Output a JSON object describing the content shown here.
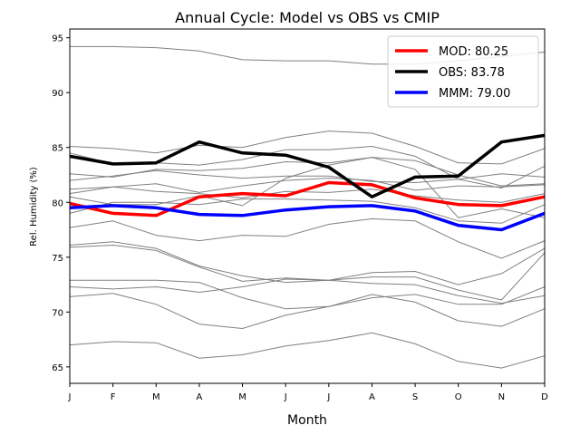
{
  "chart_data": {
    "type": "line",
    "title": "Annual Cycle: Model vs OBS vs CMIP",
    "xlabel": "Month",
    "ylabel": "Rel. Humidity (%)",
    "categories": [
      "J",
      "F",
      "M",
      "A",
      "M",
      "J",
      "J",
      "A",
      "S",
      "O",
      "N",
      "D"
    ],
    "ylim": [
      63.5,
      95.8
    ],
    "yticks": [
      65,
      70,
      75,
      80,
      85,
      90,
      95
    ],
    "legend_position": "top-right",
    "series": [
      {
        "name": "MOD: 80.25",
        "color": "#ff0000",
        "role": "highlight",
        "values": [
          79.9,
          79.0,
          78.8,
          80.5,
          80.8,
          80.6,
          81.8,
          81.6,
          80.4,
          79.8,
          79.7,
          80.5
        ]
      },
      {
        "name": "OBS: 83.78",
        "color": "#000000",
        "role": "highlight",
        "values": [
          84.2,
          83.5,
          83.6,
          85.5,
          84.5,
          84.3,
          83.2,
          80.5,
          82.3,
          82.4,
          85.5,
          86.1
        ]
      },
      {
        "name": "MMM: 79.00",
        "color": "#0000ff",
        "role": "highlight",
        "values": [
          79.5,
          79.7,
          79.5,
          78.9,
          78.8,
          79.3,
          79.6,
          79.7,
          79.2,
          77.9,
          77.5,
          79.0
        ]
      }
    ],
    "cmip_series": [
      {
        "color": "#808080",
        "values": [
          94.2,
          94.2,
          94.1,
          93.8,
          93.0,
          92.9,
          92.9,
          92.6,
          92.6,
          92.9,
          93.3,
          93.7
        ]
      },
      {
        "color": "#808080",
        "values": [
          85.1,
          84.9,
          84.5,
          85.2,
          85.0,
          85.9,
          86.5,
          86.3,
          85.1,
          83.6,
          83.5,
          84.9
        ]
      },
      {
        "color": "#808080",
        "values": [
          84.5,
          83.5,
          83.6,
          83.4,
          83.9,
          84.8,
          84.8,
          85.1,
          84.2,
          82.1,
          81.3,
          83.3
        ]
      },
      {
        "color": "#808080",
        "values": [
          82.6,
          82.3,
          83.0,
          82.9,
          83.1,
          83.7,
          83.6,
          84.1,
          83.8,
          82.5,
          81.5,
          81.7
        ]
      },
      {
        "color": "#808080",
        "values": [
          82.0,
          82.4,
          82.9,
          82.5,
          82.2,
          82.4,
          82.4,
          81.9,
          81.8,
          82.1,
          82.6,
          82.3
        ]
      },
      {
        "color": "#808080",
        "values": [
          81.2,
          81.4,
          81.7,
          80.9,
          81.5,
          82.0,
          82.2,
          82.0,
          81.1,
          81.5,
          81.4,
          81.6
        ]
      },
      {
        "color": "#808080",
        "values": [
          80.8,
          81.4,
          81.0,
          80.8,
          80.4,
          81.0,
          80.9,
          81.2,
          80.6,
          80.2,
          80.0,
          80.8
        ]
      },
      {
        "color": "#808080",
        "values": [
          80.5,
          79.8,
          79.8,
          80.6,
          79.7,
          82.2,
          83.4,
          84.1,
          83.0,
          78.6,
          79.4,
          78.6
        ]
      },
      {
        "color": "#808080",
        "values": [
          79.0,
          80.0,
          80.0,
          79.8,
          80.3,
          80.3,
          80.2,
          80.1,
          79.5,
          78.3,
          78.1,
          79.8
        ]
      },
      {
        "color": "#808080",
        "values": [
          77.7,
          78.3,
          77.0,
          76.5,
          77.0,
          76.9,
          78.0,
          78.5,
          78.3,
          76.4,
          74.9,
          76.5
        ]
      },
      {
        "color": "#808080",
        "values": [
          76.1,
          76.4,
          75.8,
          74.2,
          73.3,
          72.7,
          72.9,
          73.2,
          73.2,
          72.0,
          71.1,
          75.4
        ]
      },
      {
        "color": "#808080",
        "values": [
          75.9,
          76.1,
          75.6,
          74.1,
          72.8,
          73.1,
          72.9,
          73.6,
          73.7,
          72.5,
          73.5,
          75.8
        ]
      },
      {
        "color": "#808080",
        "values": [
          72.9,
          72.9,
          72.9,
          72.7,
          71.3,
          70.3,
          70.5,
          71.6,
          70.9,
          69.2,
          68.7,
          70.3
        ]
      },
      {
        "color": "#808080",
        "values": [
          72.3,
          72.1,
          72.3,
          71.8,
          72.3,
          73.0,
          72.9,
          72.6,
          72.5,
          71.5,
          70.8,
          71.5
        ]
      },
      {
        "color": "#808080",
        "values": [
          71.4,
          71.7,
          70.7,
          68.9,
          68.5,
          69.7,
          70.5,
          71.3,
          71.6,
          70.7,
          70.7,
          72.3
        ]
      },
      {
        "color": "#808080",
        "values": [
          67.0,
          67.3,
          67.2,
          65.8,
          66.1,
          66.9,
          67.4,
          68.1,
          67.1,
          65.5,
          64.9,
          66.0
        ]
      }
    ]
  }
}
